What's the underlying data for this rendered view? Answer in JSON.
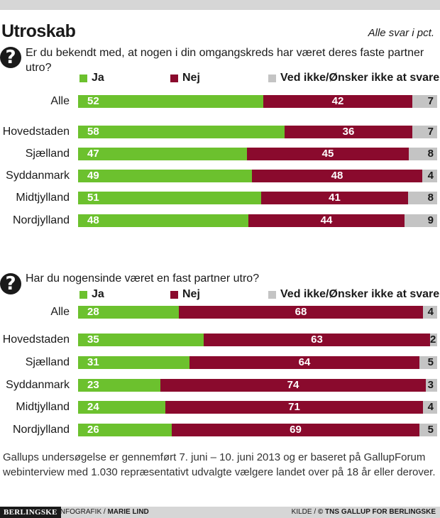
{
  "header": {
    "title": "Utroskab",
    "unit_note": "Alle svar i pct."
  },
  "colors": {
    "ja": "#6cc12e",
    "nej": "#8a0a2d",
    "ved_ikke": "#c4c4c4",
    "icon": "#1a1a1a"
  },
  "icon": "question-mark-circle-icon",
  "chart_data": [
    {
      "type": "bar",
      "stacked": true,
      "orientation": "horizontal",
      "question": "Er du bekendt med, at nogen i din omgangskreds har været deres faste partner utro?",
      "legend": [
        "Ja",
        "Nej",
        "Ved ikke/Ønsker ikke at svare"
      ],
      "categories": [
        "Alle",
        "Hovedstaden",
        "Sjælland",
        "Syddanmark",
        "Midtjylland",
        "Nordjylland"
      ],
      "series": [
        {
          "name": "Ja",
          "values": [
            52,
            58,
            47,
            49,
            51,
            48
          ]
        },
        {
          "name": "Nej",
          "values": [
            42,
            36,
            45,
            48,
            41,
            44
          ]
        },
        {
          "name": "Ved ikke/Ønsker ikke at svare",
          "values": [
            7,
            7,
            8,
            4,
            8,
            9
          ]
        }
      ]
    },
    {
      "type": "bar",
      "stacked": true,
      "orientation": "horizontal",
      "question": "Har du nogensinde været en fast partner utro?",
      "legend": [
        "Ja",
        "Nej",
        "Ved ikke/Ønsker ikke at svare"
      ],
      "categories": [
        "Alle",
        "Hovedstaden",
        "Sjælland",
        "Syddanmark",
        "Midtjylland",
        "Nordjylland"
      ],
      "series": [
        {
          "name": "Ja",
          "values": [
            28,
            35,
            31,
            23,
            24,
            26
          ]
        },
        {
          "name": "Nej",
          "values": [
            68,
            63,
            64,
            74,
            71,
            69
          ]
        },
        {
          "name": "Ved ikke/Ønsker ikke at svare",
          "values": [
            4,
            2,
            5,
            3,
            4,
            5
          ]
        }
      ]
    }
  ],
  "footnote": "Gallups undersøgelse er gennemført 7. juni – 10. juni 2013 og er baseret på GallupForum webinterview med 1.030 repræsentativt udvalgte vælgere landet over på 18 år eller derover.",
  "footer": {
    "brand": "BERLINGSKE",
    "credit_prefix": "INFOGRAFIK / ",
    "credit_name": "MARIE LIND",
    "source_prefix": "KILDE / ",
    "source_name": "© TNS GALLUP FOR BERLINGSKE"
  }
}
